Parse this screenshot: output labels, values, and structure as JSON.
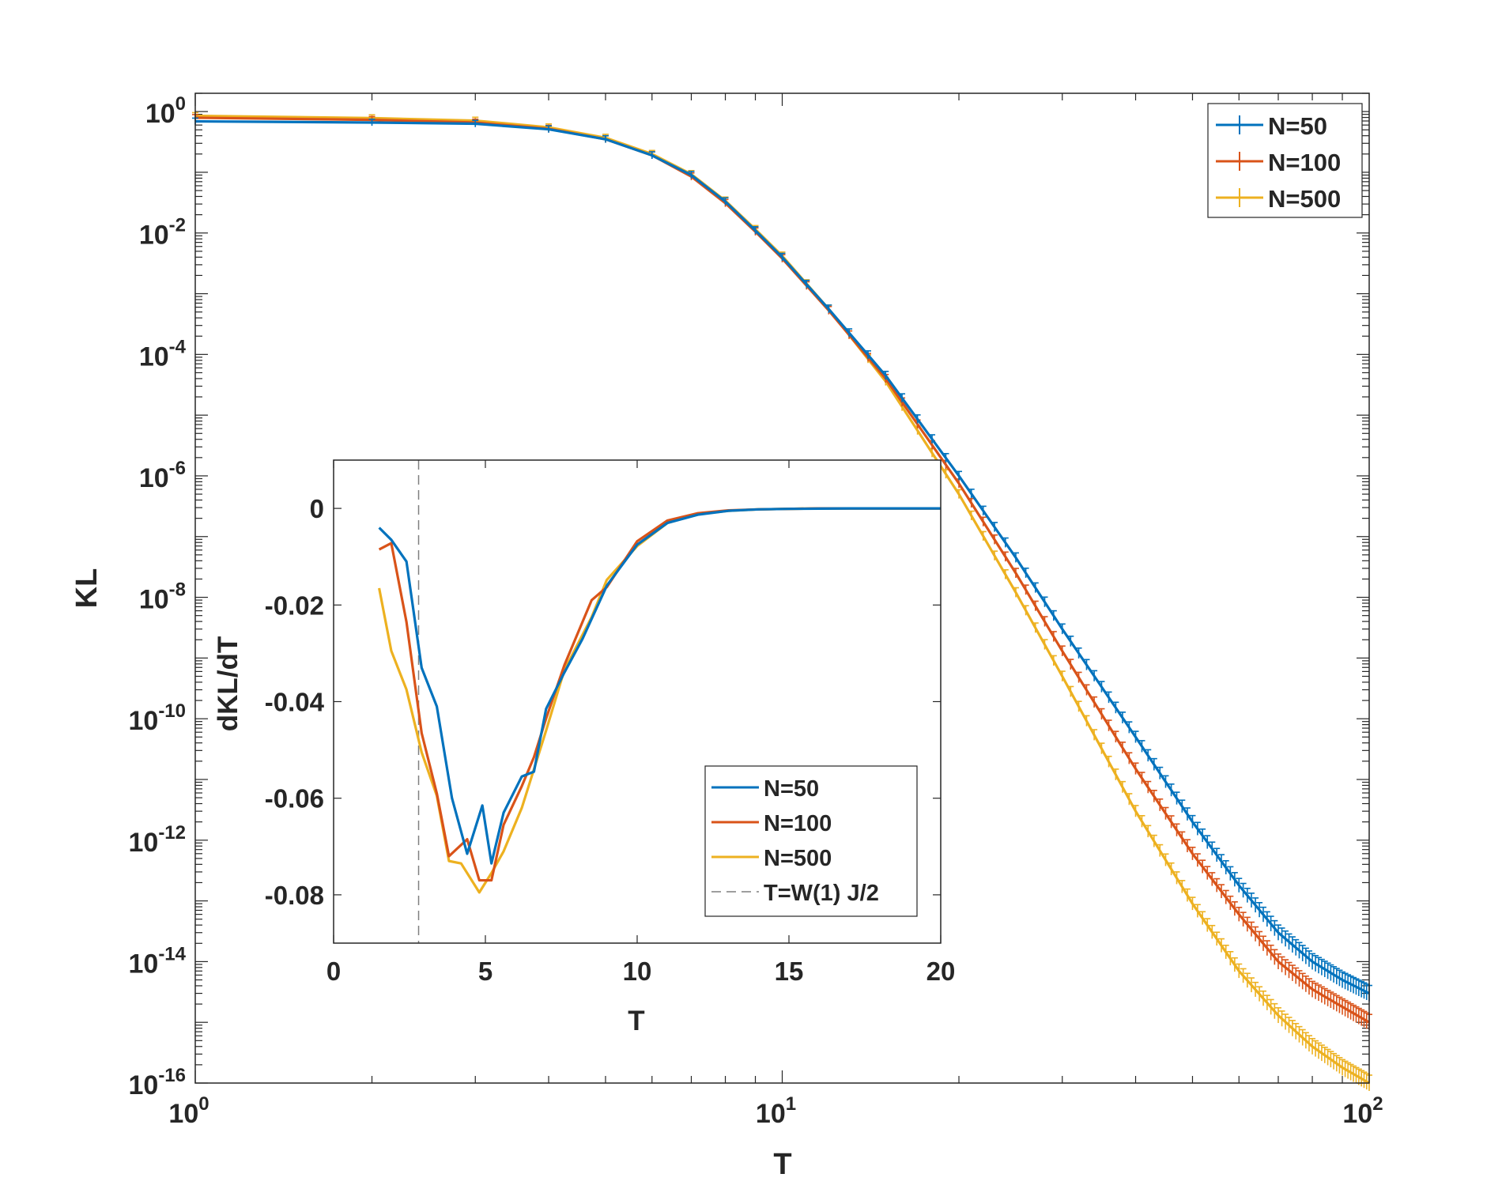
{
  "chart_data": [
    {
      "type": "line",
      "role": "main",
      "xscale": "log",
      "yscale": "log",
      "xlabel": "T",
      "ylabel": "KL",
      "xlim": [
        1,
        100
      ],
      "ylim": [
        1e-16,
        2
      ],
      "xticks": [
        {
          "base": "10",
          "exp": "0",
          "value": 1
        },
        {
          "base": "10",
          "exp": "1",
          "value": 10
        },
        {
          "base": "10",
          "exp": "2",
          "value": 100
        }
      ],
      "yticks": [
        {
          "base": "10",
          "exp": "0",
          "value": 1
        },
        {
          "base": "10",
          "exp": "-2",
          "value": 0.01
        },
        {
          "base": "10",
          "exp": "-4",
          "value": 0.0001
        },
        {
          "base": "10",
          "exp": "-6",
          "value": 1e-06
        },
        {
          "base": "10",
          "exp": "-8",
          "value": 1e-08
        },
        {
          "base": "10",
          "exp": "-10",
          "value": 1e-10
        },
        {
          "base": "10",
          "exp": "-12",
          "value": 1e-12
        },
        {
          "base": "10",
          "exp": "-14",
          "value": 1e-14
        },
        {
          "base": "10",
          "exp": "-16",
          "value": 1e-16
        }
      ],
      "error_bars": true,
      "legend_position": "top-right",
      "series": [
        {
          "name": "N=50",
          "color": "#0072BD",
          "x": [
            1,
            2,
            3,
            4,
            5,
            6,
            7,
            8,
            9,
            10,
            12,
            15,
            20,
            25,
            30,
            40,
            50,
            60,
            70,
            80,
            90,
            100
          ],
          "y": [
            0.69,
            0.66,
            0.63,
            0.51,
            0.35,
            0.19,
            0.09,
            0.033,
            0.011,
            0.004,
            0.00056,
            4.5e-05,
            1e-06,
            4.5e-08,
            3e-09,
            5e-11,
            2e-12,
            1.8e-13,
            3e-14,
            1e-14,
            5e-15,
            3e-15
          ]
        },
        {
          "name": "N=100",
          "color": "#D95319",
          "x": [
            1,
            2,
            3,
            4,
            5,
            6,
            7,
            8,
            9,
            10,
            12,
            15,
            20,
            25,
            30,
            40,
            50,
            60,
            70,
            80,
            90,
            100
          ],
          "y": [
            0.79,
            0.73,
            0.66,
            0.52,
            0.35,
            0.19,
            0.085,
            0.031,
            0.0105,
            0.0038,
            0.00053,
            4e-05,
            7.5e-07,
            2.5e-08,
            1.3e-09,
            1.5e-11,
            6e-13,
            6e-14,
            1e-14,
            3.5e-15,
            1.8e-15,
            1e-15
          ]
        },
        {
          "name": "N=500",
          "color": "#EDB120",
          "x": [
            1,
            2,
            3,
            4,
            5,
            6,
            7,
            8,
            9,
            10,
            12,
            15,
            20,
            25,
            30,
            40,
            50,
            60,
            70,
            80,
            90,
            100
          ],
          "y": [
            0.85,
            0.78,
            0.71,
            0.55,
            0.37,
            0.2,
            0.093,
            0.034,
            0.0115,
            0.0042,
            0.00056,
            3.6e-05,
            5e-07,
            1.2e-08,
            5e-10,
            3e-12,
            9e-14,
            7e-15,
            1.3e-15,
            4e-16,
            1.8e-16,
            1e-16
          ]
        }
      ]
    },
    {
      "type": "line",
      "role": "inset",
      "xlabel": "T",
      "ylabel": "dKL/dT",
      "xlim": [
        0,
        20
      ],
      "ylim": [
        -0.09,
        0.01
      ],
      "xticks": [
        "0",
        "5",
        "10",
        "15",
        "20"
      ],
      "yticks": [
        "0",
        "-0.02",
        "-0.04",
        "-0.06",
        "-0.08"
      ],
      "legend_position": "bottom-right",
      "series": [
        {
          "name": "N=50",
          "color": "#0072BD",
          "x": [
            1.5,
            1.9,
            2.4,
            2.9,
            3.4,
            3.9,
            4.4,
            4.9,
            5.2,
            5.6,
            6.2,
            6.6,
            7,
            7.6,
            8.2,
            9,
            10,
            11,
            12,
            13,
            14,
            15,
            16,
            17,
            18,
            19,
            20
          ],
          "y": [
            -0.004,
            -0.0065,
            -0.011,
            -0.033,
            -0.041,
            -0.06,
            -0.0715,
            -0.0615,
            -0.0735,
            -0.063,
            -0.0555,
            -0.0545,
            -0.0415,
            -0.034,
            -0.027,
            -0.016,
            -0.0075,
            -0.003,
            -0.0013,
            -0.0005,
            -0.0002,
            -0.0001,
            -5e-05,
            0,
            0,
            0,
            0
          ]
        },
        {
          "name": "N=100",
          "color": "#D95319",
          "x": [
            1.5,
            1.9,
            2.4,
            2.9,
            3.4,
            3.8,
            4.4,
            4.8,
            5.2,
            5.6,
            6.2,
            6.6,
            7,
            7.6,
            8.5,
            9,
            10,
            11,
            12,
            13,
            14,
            15,
            16,
            17,
            18,
            19,
            20
          ],
          "y": [
            -0.0085,
            -0.0072,
            -0.0235,
            -0.0465,
            -0.059,
            -0.072,
            -0.0685,
            -0.077,
            -0.077,
            -0.0655,
            -0.0575,
            -0.0515,
            -0.0435,
            -0.0325,
            -0.019,
            -0.0163,
            -0.0068,
            -0.0025,
            -0.001,
            -0.0004,
            -0.0002,
            -0.0001,
            0,
            0,
            0,
            0,
            0
          ]
        },
        {
          "name": "N=500",
          "color": "#EDB120",
          "x": [
            1.5,
            1.9,
            2.4,
            2.9,
            3.4,
            3.8,
            4.2,
            4.8,
            5.2,
            5.6,
            6.2,
            7,
            7.6,
            8.5,
            9,
            10,
            11,
            12,
            13,
            14,
            15,
            16,
            17,
            18,
            19,
            20
          ],
          "y": [
            -0.0165,
            -0.0295,
            -0.0375,
            -0.0505,
            -0.0595,
            -0.073,
            -0.0735,
            -0.0795,
            -0.0755,
            -0.071,
            -0.062,
            -0.046,
            -0.0335,
            -0.0225,
            -0.0148,
            -0.0078,
            -0.003,
            -0.0012,
            -0.0005,
            -0.0002,
            -0.0001,
            0,
            0,
            0,
            0,
            0
          ]
        }
      ],
      "reference_line": {
        "name": "T=W(1) J/2",
        "x": 2.8,
        "color": "#7f7f7f",
        "style": "dashed"
      }
    }
  ]
}
